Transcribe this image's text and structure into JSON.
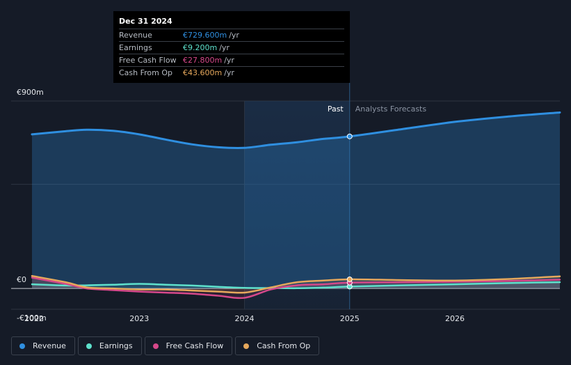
{
  "tooltip": {
    "date": "Dec 31 2024",
    "rows": [
      {
        "name": "Revenue",
        "value": "€729.600m",
        "unit": "/yr",
        "color": "#2f8fe0"
      },
      {
        "name": "Earnings",
        "value": "€9.200m",
        "unit": "/yr",
        "color": "#5ee1cc"
      },
      {
        "name": "Free Cash Flow",
        "value": "€27.800m",
        "unit": "/yr",
        "color": "#d6488a"
      },
      {
        "name": "Cash From Op",
        "value": "€43.600m",
        "unit": "/yr",
        "color": "#e6a85c"
      }
    ]
  },
  "regions": {
    "past": "Past",
    "forecast": "Analysts Forecasts"
  },
  "legend": [
    {
      "label": "Revenue",
      "color": "#2f8fe0"
    },
    {
      "label": "Earnings",
      "color": "#5ee1cc"
    },
    {
      "label": "Free Cash Flow",
      "color": "#d6488a"
    },
    {
      "label": "Cash From Op",
      "color": "#e6a85c"
    }
  ],
  "chart_data": {
    "type": "line",
    "title": "",
    "xlabel": "",
    "ylabel": "",
    "y_tick_labels": [
      "€900m",
      "€0",
      "-€100m"
    ],
    "x_tick_labels": [
      "2022",
      "2023",
      "2024",
      "2025",
      "2026"
    ],
    "xlim": [
      2021.9,
      2027.0
    ],
    "ylim": [
      -100,
      900
    ],
    "past_range": [
      2024.0,
      2025.0
    ],
    "highlight_x": 2025.0,
    "series": [
      {
        "name": "Revenue",
        "color": "#2f8fe0",
        "x": [
          2021.98,
          2022.3,
          2022.5,
          2022.75,
          2023.0,
          2023.25,
          2023.5,
          2023.75,
          2024.0,
          2024.25,
          2024.5,
          2024.75,
          2025.0,
          2025.5,
          2026.0,
          2026.5,
          2027.0
        ],
        "y": [
          740,
          755,
          762,
          757,
          740,
          715,
          692,
          678,
          675,
          690,
          702,
          718,
          730,
          765,
          800,
          825,
          845
        ]
      },
      {
        "name": "Earnings",
        "color": "#5ee1cc",
        "x": [
          2021.98,
          2022.3,
          2022.5,
          2022.75,
          2023.0,
          2023.25,
          2023.5,
          2023.75,
          2024.0,
          2024.25,
          2024.5,
          2024.75,
          2025.0,
          2025.5,
          2026.0,
          2026.5,
          2027.0
        ],
        "y": [
          20,
          14,
          15,
          18,
          22,
          18,
          14,
          8,
          3,
          2,
          1,
          4,
          9,
          15,
          20,
          26,
          30
        ]
      },
      {
        "name": "Free Cash Flow",
        "color": "#d6488a",
        "x": [
          2021.98,
          2022.3,
          2022.5,
          2022.75,
          2023.0,
          2023.25,
          2023.5,
          2023.75,
          2024.0,
          2024.25,
          2024.5,
          2024.75,
          2025.0,
          2025.5,
          2026.0,
          2026.5,
          2027.0
        ],
        "y": [
          52,
          22,
          0,
          -8,
          -15,
          -20,
          -25,
          -35,
          -45,
          -5,
          15,
          20,
          28,
          30,
          32,
          36,
          42
        ]
      },
      {
        "name": "Cash From Op",
        "color": "#e6a85c",
        "x": [
          2021.98,
          2022.3,
          2022.5,
          2022.75,
          2023.0,
          2023.25,
          2023.5,
          2023.75,
          2024.0,
          2024.25,
          2024.5,
          2024.75,
          2025.0,
          2025.5,
          2026.0,
          2026.5,
          2027.0
        ],
        "y": [
          60,
          30,
          5,
          0,
          -5,
          -5,
          -10,
          -15,
          -20,
          5,
          30,
          38,
          44,
          40,
          38,
          45,
          58
        ]
      }
    ]
  }
}
